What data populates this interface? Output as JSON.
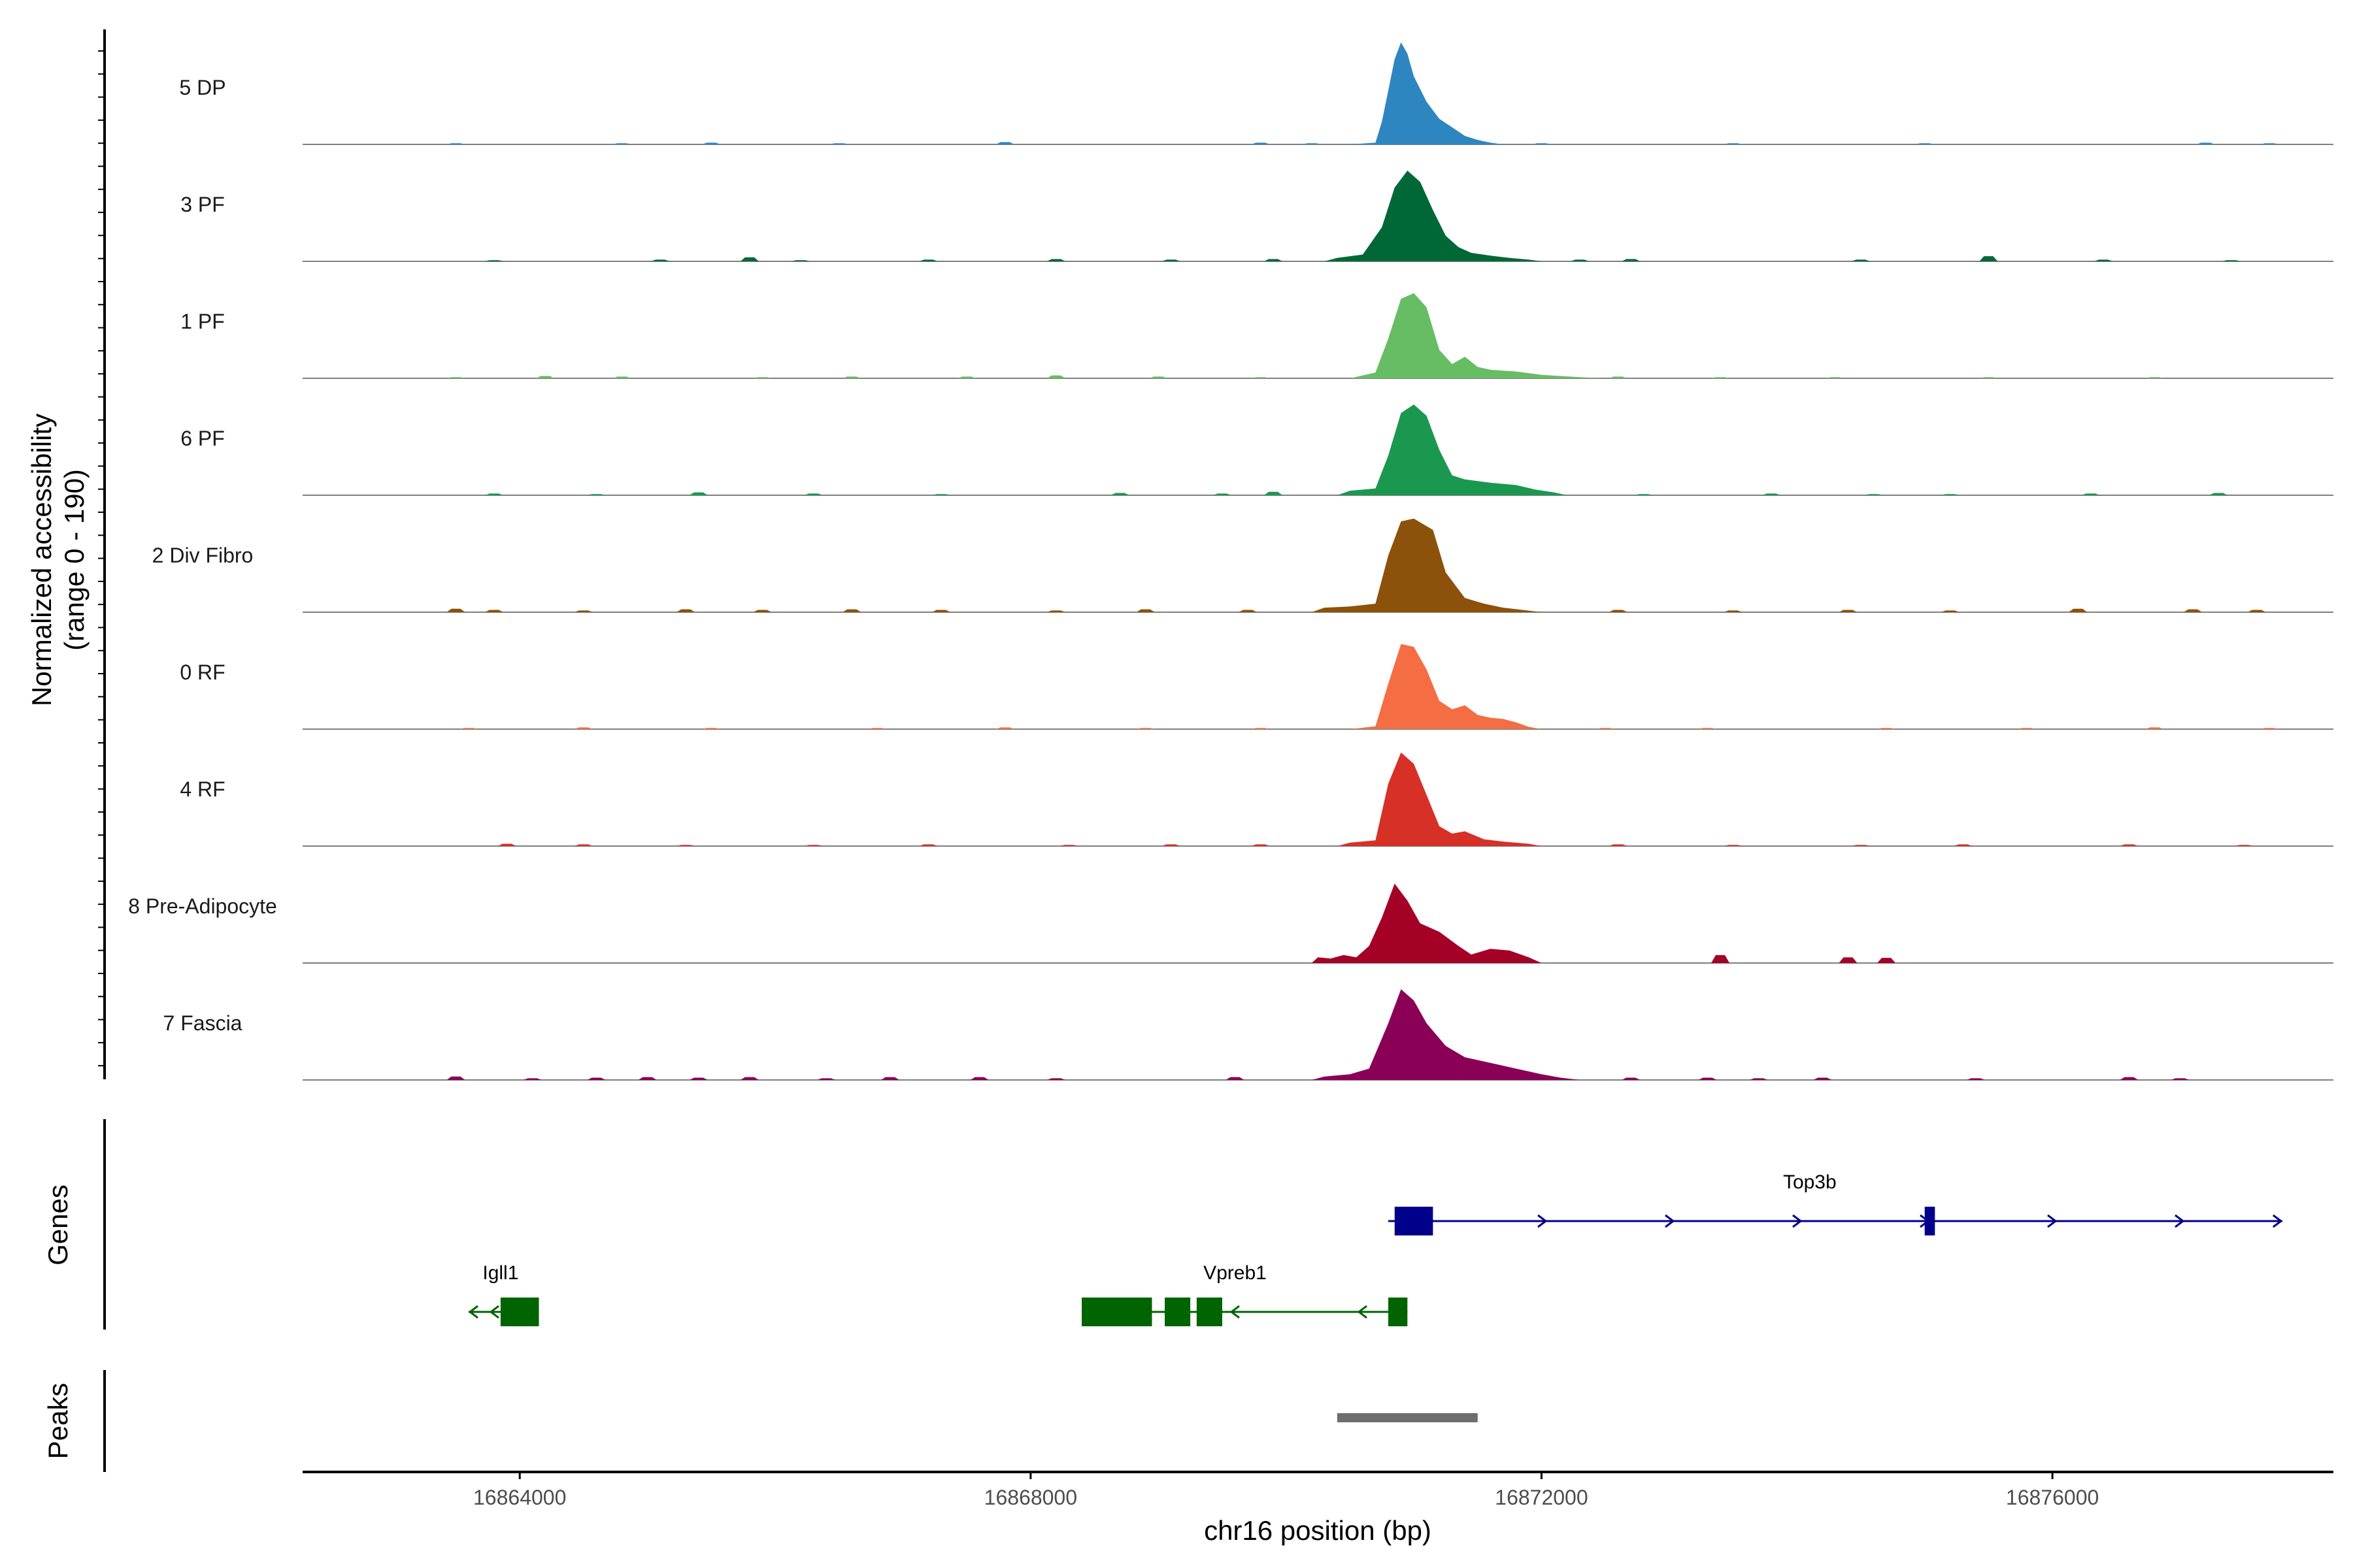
{
  "chart_data": {
    "type": "area",
    "title": "",
    "region": {
      "chrom": "chr16",
      "start": 16862300,
      "end": 16878200
    },
    "xlabel": "chr16 position (bp)",
    "ylabel": "Normalized accessibility",
    "ylabel_range": "(range 0 - 190)",
    "ylim": [
      0,
      190
    ],
    "xticks": [
      {
        "value": 16864000,
        "label": "16864000"
      },
      {
        "value": 16868000,
        "label": "16868000"
      },
      {
        "value": 16872000,
        "label": "16872000"
      },
      {
        "value": 16876000,
        "label": "16876000"
      }
    ],
    "series": [
      {
        "name": "5 DP",
        "color": "#2e86c1",
        "points": [
          [
            16870500,
            0
          ],
          [
            16870700,
            3
          ],
          [
            16870750,
            40
          ],
          [
            16870800,
            95
          ],
          [
            16870850,
            150
          ],
          [
            16870900,
            180
          ],
          [
            16870950,
            160
          ],
          [
            16871000,
            120
          ],
          [
            16871100,
            75
          ],
          [
            16871200,
            45
          ],
          [
            16871300,
            30
          ],
          [
            16871400,
            15
          ],
          [
            16871500,
            8
          ],
          [
            16871600,
            3
          ],
          [
            16871700,
            0
          ]
        ],
        "noise": [
          [
            16863500,
            2
          ],
          [
            16864800,
            2
          ],
          [
            16865500,
            3
          ],
          [
            16866500,
            2
          ],
          [
            16867800,
            4
          ],
          [
            16869800,
            3
          ],
          [
            16870200,
            2
          ],
          [
            16872000,
            2
          ],
          [
            16873500,
            2
          ],
          [
            16875000,
            2
          ],
          [
            16877200,
            3
          ],
          [
            16877700,
            2
          ]
        ]
      },
      {
        "name": "3 PF",
        "color": "#006837",
        "points": [
          [
            16870300,
            0
          ],
          [
            16870400,
            6
          ],
          [
            16870600,
            12
          ],
          [
            16870750,
            60
          ],
          [
            16870850,
            130
          ],
          [
            16870950,
            160
          ],
          [
            16871050,
            140
          ],
          [
            16871150,
            90
          ],
          [
            16871250,
            45
          ],
          [
            16871350,
            25
          ],
          [
            16871450,
            15
          ],
          [
            16871600,
            10
          ],
          [
            16871750,
            6
          ],
          [
            16871900,
            3
          ],
          [
            16872000,
            0
          ]
        ],
        "noise": [
          [
            16863800,
            2
          ],
          [
            16865100,
            3
          ],
          [
            16865800,
            7
          ],
          [
            16866200,
            2
          ],
          [
            16867200,
            3
          ],
          [
            16868200,
            4
          ],
          [
            16869100,
            3
          ],
          [
            16869900,
            4
          ],
          [
            16872300,
            3
          ],
          [
            16872700,
            4
          ],
          [
            16874500,
            3
          ],
          [
            16875500,
            9
          ],
          [
            16876400,
            3
          ],
          [
            16877400,
            2
          ]
        ]
      },
      {
        "name": "1 PF",
        "color": "#66bd63",
        "points": [
          [
            16870500,
            0
          ],
          [
            16870700,
            10
          ],
          [
            16870800,
            70
          ],
          [
            16870900,
            140
          ],
          [
            16871000,
            150
          ],
          [
            16871100,
            125
          ],
          [
            16871200,
            50
          ],
          [
            16871300,
            25
          ],
          [
            16871400,
            38
          ],
          [
            16871500,
            20
          ],
          [
            16871600,
            15
          ],
          [
            16871800,
            12
          ],
          [
            16872000,
            6
          ],
          [
            16872300,
            2
          ],
          [
            16872500,
            0
          ]
        ],
        "noise": [
          [
            16863500,
            2
          ],
          [
            16864200,
            4
          ],
          [
            16864800,
            3
          ],
          [
            16865900,
            2
          ],
          [
            16866600,
            3
          ],
          [
            16867500,
            3
          ],
          [
            16868200,
            5
          ],
          [
            16869000,
            3
          ],
          [
            16869800,
            2
          ],
          [
            16872600,
            3
          ],
          [
            16873400,
            2
          ],
          [
            16874300,
            2
          ],
          [
            16875500,
            2
          ],
          [
            16876800,
            2
          ]
        ]
      },
      {
        "name": "6 PF",
        "color": "#1a9850",
        "points": [
          [
            16870400,
            0
          ],
          [
            16870500,
            8
          ],
          [
            16870700,
            12
          ],
          [
            16870800,
            70
          ],
          [
            16870900,
            145
          ],
          [
            16871000,
            160
          ],
          [
            16871100,
            140
          ],
          [
            16871200,
            80
          ],
          [
            16871300,
            35
          ],
          [
            16871400,
            28
          ],
          [
            16871600,
            22
          ],
          [
            16871800,
            18
          ],
          [
            16871950,
            10
          ],
          [
            16872100,
            5
          ],
          [
            16872200,
            0
          ]
        ],
        "noise": [
          [
            16863800,
            3
          ],
          [
            16864600,
            2
          ],
          [
            16865400,
            5
          ],
          [
            16866300,
            3
          ],
          [
            16867300,
            2
          ],
          [
            16868700,
            4
          ],
          [
            16869500,
            3
          ],
          [
            16869900,
            6
          ],
          [
            16872800,
            2
          ],
          [
            16873800,
            3
          ],
          [
            16874600,
            2
          ],
          [
            16875200,
            2
          ],
          [
            16876300,
            3
          ],
          [
            16877300,
            4
          ]
        ]
      },
      {
        "name": "2 Div Fibro",
        "color": "#8c510a",
        "points": [
          [
            16870200,
            0
          ],
          [
            16870300,
            8
          ],
          [
            16870500,
            10
          ],
          [
            16870700,
            15
          ],
          [
            16870800,
            100
          ],
          [
            16870900,
            160
          ],
          [
            16871000,
            165
          ],
          [
            16871150,
            145
          ],
          [
            16871250,
            70
          ],
          [
            16871400,
            25
          ],
          [
            16871550,
            15
          ],
          [
            16871700,
            8
          ],
          [
            16871850,
            4
          ],
          [
            16872000,
            0
          ]
        ],
        "noise": [
          [
            16863500,
            6
          ],
          [
            16863800,
            4
          ],
          [
            16864500,
            3
          ],
          [
            16865300,
            5
          ],
          [
            16865900,
            4
          ],
          [
            16866600,
            5
          ],
          [
            16867300,
            4
          ],
          [
            16868200,
            3
          ],
          [
            16868900,
            5
          ],
          [
            16869700,
            4
          ],
          [
            16872600,
            4
          ],
          [
            16873500,
            3
          ],
          [
            16874400,
            4
          ],
          [
            16875200,
            3
          ],
          [
            16876200,
            6
          ],
          [
            16877100,
            5
          ],
          [
            16877600,
            4
          ]
        ]
      },
      {
        "name": "0 RF",
        "color": "#f46d43",
        "points": [
          [
            16870500,
            0
          ],
          [
            16870700,
            5
          ],
          [
            16870800,
            80
          ],
          [
            16870900,
            150
          ],
          [
            16871000,
            145
          ],
          [
            16871100,
            105
          ],
          [
            16871200,
            50
          ],
          [
            16871300,
            35
          ],
          [
            16871400,
            42
          ],
          [
            16871500,
            25
          ],
          [
            16871600,
            20
          ],
          [
            16871700,
            18
          ],
          [
            16871800,
            12
          ],
          [
            16871900,
            4
          ],
          [
            16872000,
            0
          ]
        ],
        "noise": [
          [
            16863600,
            2
          ],
          [
            16864500,
            3
          ],
          [
            16865500,
            2
          ],
          [
            16866800,
            2
          ],
          [
            16867800,
            3
          ],
          [
            16868900,
            2
          ],
          [
            16869800,
            2
          ],
          [
            16872500,
            2
          ],
          [
            16873300,
            2
          ],
          [
            16874700,
            2
          ],
          [
            16875800,
            2
          ],
          [
            16876800,
            3
          ],
          [
            16877700,
            2
          ]
        ]
      },
      {
        "name": "4 RF",
        "color": "#d73027",
        "points": [
          [
            16870400,
            0
          ],
          [
            16870500,
            6
          ],
          [
            16870700,
            10
          ],
          [
            16870800,
            110
          ],
          [
            16870900,
            165
          ],
          [
            16871000,
            145
          ],
          [
            16871100,
            90
          ],
          [
            16871200,
            35
          ],
          [
            16871300,
            22
          ],
          [
            16871400,
            26
          ],
          [
            16871550,
            12
          ],
          [
            16871700,
            8
          ],
          [
            16871900,
            4
          ],
          [
            16872000,
            0
          ]
        ],
        "noise": [
          [
            16863900,
            4
          ],
          [
            16864500,
            3
          ],
          [
            16865300,
            2
          ],
          [
            16866300,
            2
          ],
          [
            16867200,
            3
          ],
          [
            16868300,
            2
          ],
          [
            16869100,
            3
          ],
          [
            16869800,
            3
          ],
          [
            16872600,
            3
          ],
          [
            16873500,
            2
          ],
          [
            16874500,
            2
          ],
          [
            16875300,
            3
          ],
          [
            16876600,
            3
          ],
          [
            16877500,
            2
          ]
        ]
      },
      {
        "name": "8 Pre-Adipocyte",
        "color": "#a50026",
        "points": [
          [
            16870200,
            0
          ],
          [
            16870250,
            10
          ],
          [
            16870350,
            8
          ],
          [
            16870450,
            14
          ],
          [
            16870550,
            10
          ],
          [
            16870650,
            30
          ],
          [
            16870750,
            80
          ],
          [
            16870850,
            140
          ],
          [
            16870950,
            110
          ],
          [
            16871050,
            70
          ],
          [
            16871200,
            55
          ],
          [
            16871350,
            30
          ],
          [
            16871450,
            15
          ],
          [
            16871600,
            25
          ],
          [
            16871750,
            22
          ],
          [
            16871900,
            10
          ],
          [
            16872000,
            0
          ]
        ],
        "noise": [
          [
            16873400,
            14
          ],
          [
            16874400,
            10
          ],
          [
            16874700,
            9
          ]
        ]
      },
      {
        "name": "7 Fascia",
        "color": "#8b0057",
        "points": [
          [
            16870200,
            0
          ],
          [
            16870300,
            6
          ],
          [
            16870500,
            10
          ],
          [
            16870650,
            20
          ],
          [
            16870800,
            100
          ],
          [
            16870900,
            160
          ],
          [
            16871000,
            140
          ],
          [
            16871100,
            100
          ],
          [
            16871250,
            60
          ],
          [
            16871400,
            40
          ],
          [
            16871600,
            30
          ],
          [
            16871800,
            20
          ],
          [
            16872000,
            10
          ],
          [
            16872150,
            4
          ],
          [
            16872300,
            0
          ]
        ],
        "noise": [
          [
            16863500,
            6
          ],
          [
            16864100,
            3
          ],
          [
            16864600,
            4
          ],
          [
            16865000,
            5
          ],
          [
            16865400,
            4
          ],
          [
            16865800,
            5
          ],
          [
            16866400,
            3
          ],
          [
            16866900,
            5
          ],
          [
            16867600,
            5
          ],
          [
            16868200,
            3
          ],
          [
            16869600,
            5
          ],
          [
            16872700,
            4
          ],
          [
            16873300,
            4
          ],
          [
            16873700,
            3
          ],
          [
            16874200,
            4
          ],
          [
            16875400,
            3
          ],
          [
            16876600,
            5
          ],
          [
            16877000,
            3
          ]
        ]
      }
    ],
    "genes": {
      "label": "Genes",
      "items": [
        {
          "name": "Top3b",
          "strand": "+",
          "color": "#00008b",
          "row": 1,
          "start": 16870800,
          "end": 16877800,
          "exons": [
            [
              16870850,
              16871150
            ],
            [
              16875000,
              16875080
            ]
          ]
        },
        {
          "name": "Igll1",
          "strand": "-",
          "color": "#006400",
          "row": 2,
          "start": 16863600,
          "end": 16864000,
          "exons": [
            [
              16863850,
              16864150
            ]
          ]
        },
        {
          "name": "Vpreb1",
          "strand": "-",
          "color": "#006400",
          "row": 2,
          "start": 16868400,
          "end": 16870950,
          "exons": [
            [
              16868400,
              16868950
            ],
            [
              16869050,
              16869250
            ],
            [
              16869300,
              16869500
            ],
            [
              16870800,
              16870950
            ]
          ]
        }
      ]
    },
    "peaks": {
      "label": "Peaks",
      "items": [
        {
          "start": 16870400,
          "end": 16871500
        }
      ]
    }
  }
}
